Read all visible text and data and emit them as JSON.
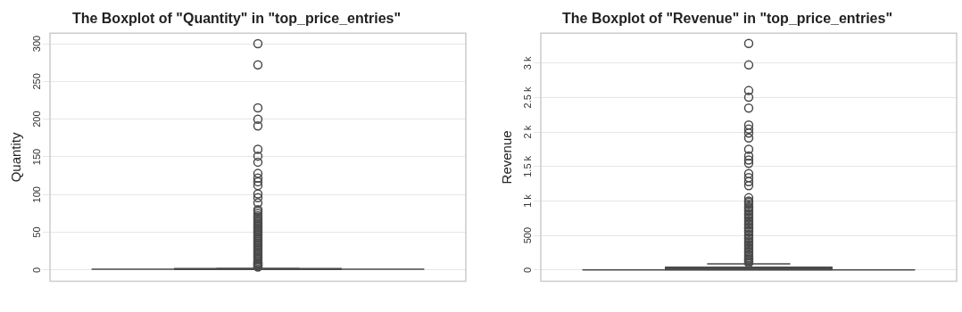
{
  "chart_data": [
    {
      "type": "box",
      "title": "The Boxplot of \"Quantity\" in \"top_price_entries\"",
      "ylabel": "Quantity",
      "categories": [
        null
      ],
      "ylim": [
        -15,
        314
      ],
      "yticks": [
        0,
        50,
        100,
        150,
        200,
        250,
        300
      ],
      "grid": "y",
      "color": "#4a4a4a",
      "boxes": [
        {
          "low": 1,
          "q1": 1,
          "median": 1,
          "q3": 2,
          "high": 2,
          "outliers": [
            300,
            272,
            215,
            200,
            191,
            160,
            151,
            143,
            128,
            122,
            117,
            112,
            101,
            96,
            89,
            80,
            78,
            75,
            72,
            70,
            68,
            66,
            64,
            62,
            60,
            58,
            56,
            54,
            52,
            50,
            48,
            46,
            44,
            42,
            40,
            38,
            36,
            34,
            32,
            30,
            28,
            26,
            24,
            22,
            20,
            18,
            16,
            14,
            12,
            10,
            9,
            8,
            7,
            6,
            5,
            4
          ]
        }
      ]
    },
    {
      "type": "box",
      "title": "The Boxplot of \"Revenue\" in \"top_price_entries\"",
      "ylabel": "Revenue",
      "categories": [
        null
      ],
      "ylim": [
        -165,
        3435
      ],
      "yticks": [
        0,
        500,
        {
          "value": 1000,
          "label": "1 k"
        },
        {
          "value": 1500,
          "label": "1.5 k"
        },
        {
          "value": 2000,
          "label": "2 k"
        },
        {
          "value": 2500,
          "label": "2.5 k"
        },
        {
          "value": 3000,
          "label": "3 k"
        }
      ],
      "grid": "y",
      "color": "#4a4a4a",
      "boxes": [
        {
          "low": 0,
          "q1": 5,
          "median": 10,
          "q3": 40,
          "high": 90,
          "outliers": [
            3286,
            2974,
            2602,
            2505,
            2348,
            2102,
            2043,
            1985,
            1915,
            1750,
            1653,
            1594,
            1547,
            1399,
            1340,
            1282,
            1223,
            1047,
            1000,
            980,
            950,
            920,
            900,
            870,
            850,
            820,
            800,
            770,
            750,
            720,
            700,
            670,
            650,
            620,
            600,
            570,
            550,
            520,
            500,
            470,
            450,
            420,
            400,
            370,
            350,
            320,
            300,
            270,
            250,
            220,
            200,
            180,
            160,
            140,
            120,
            100
          ]
        }
      ]
    }
  ]
}
